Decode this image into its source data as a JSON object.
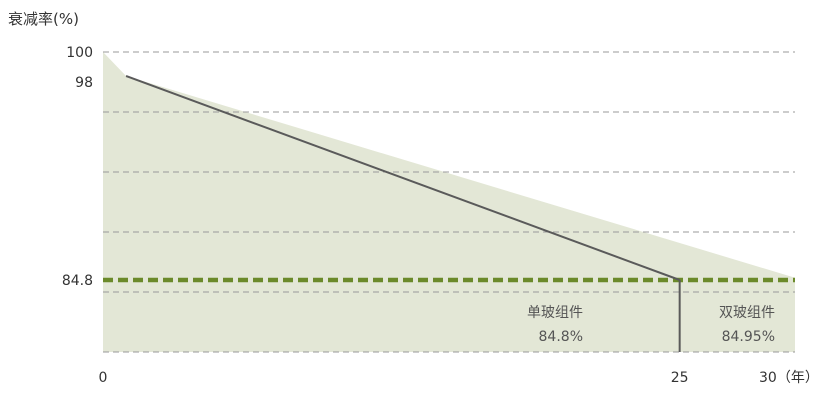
{
  "chart_data": {
    "type": "line",
    "ylabel": "衰减率(%)",
    "xlabel": "（年）",
    "xlim": [
      0,
      30
    ],
    "ylim": [
      80,
      100
    ],
    "grid": true,
    "y_ticks": [
      {
        "value": 100,
        "label": "100"
      },
      {
        "value": 98,
        "label": "98"
      },
      {
        "value": 84.8,
        "label": "84.8"
      }
    ],
    "x_ticks": [
      {
        "value": 0,
        "label": "0"
      },
      {
        "value": 25,
        "label": "25"
      },
      {
        "value": 30,
        "label": "30（年）"
      }
    ],
    "series": [
      {
        "name": "双玻组件",
        "kind": "area",
        "color": "#e3e7d6",
        "points": [
          [
            0,
            100
          ],
          [
            1,
            98.4
          ],
          [
            30,
            84.95
          ]
        ],
        "end_label": "84.95%"
      },
      {
        "name": "单玻组件",
        "kind": "line",
        "color": "#5a5a5a",
        "points": [
          [
            1,
            98.4
          ],
          [
            25,
            84.8
          ]
        ],
        "end_label": "84.8%"
      }
    ],
    "reference_lines": [
      {
        "axis": "y",
        "value": 84.8,
        "color": "#6b8a2a",
        "style": "dashed-thick"
      }
    ],
    "marker_lines": [
      {
        "axis": "x",
        "value": 25,
        "color": "#5a5a5a"
      }
    ]
  }
}
